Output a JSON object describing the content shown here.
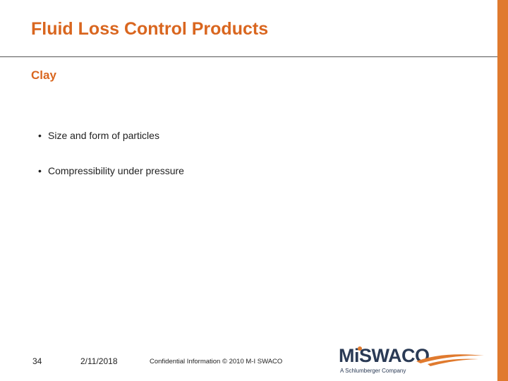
{
  "slide": {
    "title": "Fluid Loss Control Products",
    "subtitle": "Clay",
    "bullets": [
      "Size and form of particles",
      "Compressibility under pressure"
    ]
  },
  "footer": {
    "page_number": "34",
    "date": "2/11/2018",
    "confidential": "Confidential Information  © 2010 M-I SWACO"
  },
  "logo": {
    "name": "M-I SWACO",
    "tagline": "A Schlumberger Company"
  },
  "colors": {
    "accent": "#d9661f",
    "bar": "#e07a2e",
    "logo_text": "#2a3a55"
  }
}
